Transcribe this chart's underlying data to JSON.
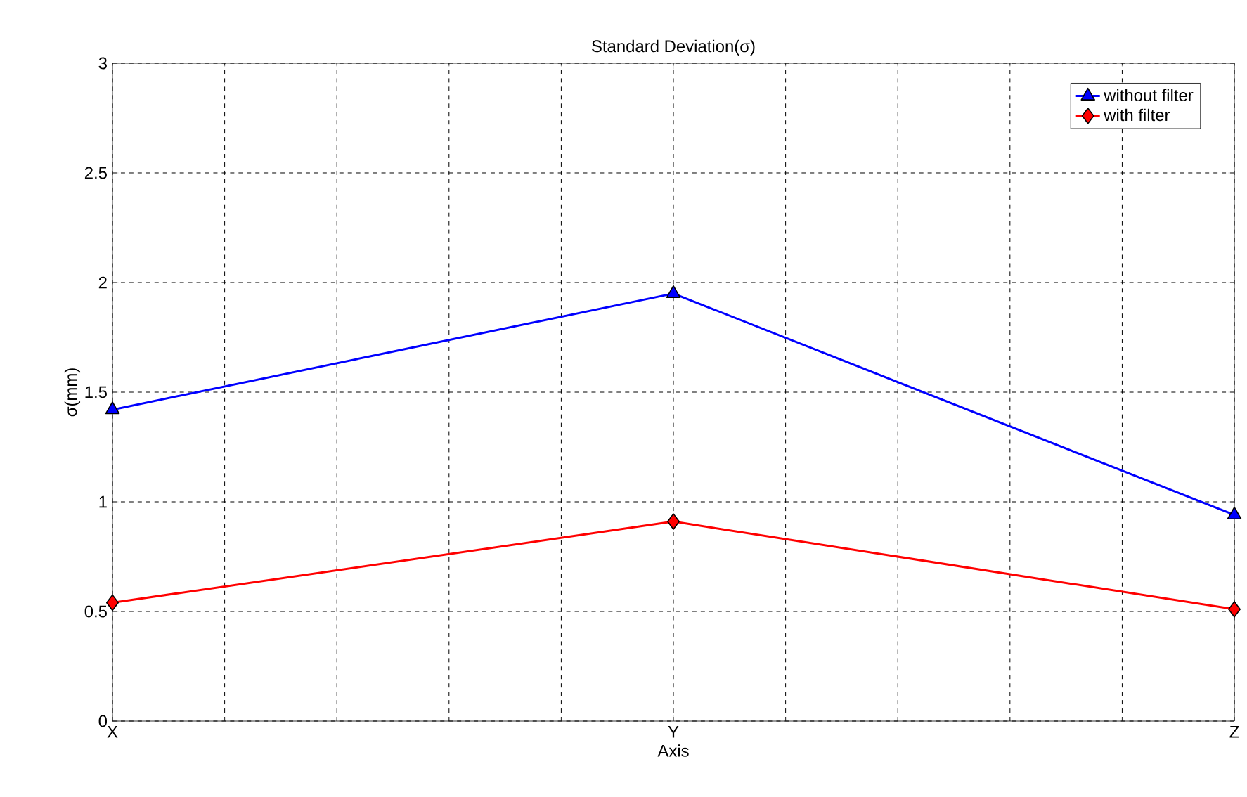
{
  "chart_data": {
    "type": "line",
    "title": "Standard Deviation(σ)",
    "xlabel": "Axis",
    "ylabel": "σ(mm)",
    "categories": [
      "X",
      "Y",
      "Z"
    ],
    "ylim": [
      0,
      3
    ],
    "yticks": [
      0,
      0.5,
      1,
      1.5,
      2,
      2.5,
      3
    ],
    "grid": true,
    "legend": "top right",
    "line_style": "solid",
    "series": [
      {
        "name": "without filter",
        "color": "#0000ff",
        "marker": "triangle",
        "values": [
          1.42,
          1.95,
          0.94
        ]
      },
      {
        "name": "with filter",
        "color": "#ff0000",
        "marker": "diamond",
        "values": [
          0.54,
          0.91,
          0.51
        ]
      }
    ]
  }
}
